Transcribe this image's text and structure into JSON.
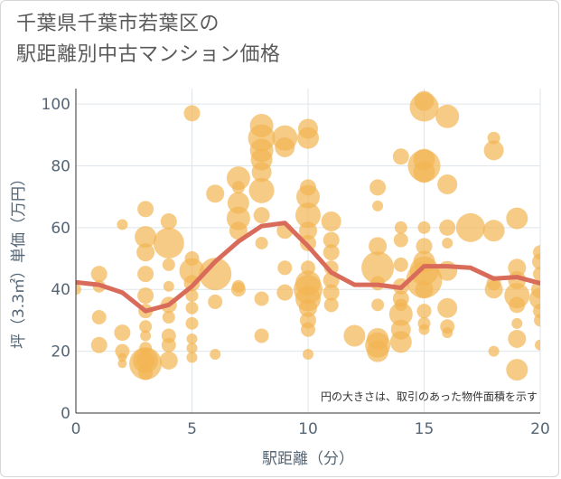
{
  "title_lines": [
    "千葉県千葉市若葉区の",
    "駅距離別中古マンション価格"
  ],
  "chart_data": {
    "type": "scatter",
    "xlabel": "駅距離（分）",
    "ylabel": "坪（3.3㎡）単価（万円）",
    "xlim": [
      0,
      20
    ],
    "ylim": [
      0,
      105
    ],
    "x_ticks": [
      0,
      5,
      10,
      15,
      20
    ],
    "y_ticks": [
      0,
      20,
      40,
      60,
      80,
      100
    ],
    "grid": true,
    "note": "円の大きさは、取引のあった物件面積を示す",
    "bubble_color": "#f2b552",
    "line_color": "#d96b5a",
    "trend_line": [
      [
        0,
        42.3
      ],
      [
        1,
        41.5
      ],
      [
        2,
        39
      ],
      [
        3,
        33
      ],
      [
        4,
        35
      ],
      [
        5,
        41
      ],
      [
        6,
        49
      ],
      [
        7,
        55.5
      ],
      [
        8,
        60.5
      ],
      [
        9,
        61.5
      ],
      [
        10,
        54
      ],
      [
        11,
        45.5
      ],
      [
        12,
        41.5
      ],
      [
        13,
        41.5
      ],
      [
        14,
        40.5
      ],
      [
        15,
        47.5
      ],
      [
        16,
        47.5
      ],
      [
        17,
        47
      ],
      [
        18,
        43.5
      ],
      [
        19,
        44
      ],
      [
        20,
        42
      ]
    ],
    "points": [
      [
        0,
        40,
        6
      ],
      [
        1,
        45,
        9
      ],
      [
        1,
        41,
        7
      ],
      [
        1,
        31,
        8
      ],
      [
        1,
        22,
        9
      ],
      [
        2,
        26,
        9
      ],
      [
        2,
        20,
        8
      ],
      [
        2,
        61,
        6
      ],
      [
        2,
        18,
        5
      ],
      [
        2,
        16,
        5
      ],
      [
        3,
        66,
        9
      ],
      [
        3,
        57,
        12
      ],
      [
        3,
        52,
        10
      ],
      [
        3,
        45,
        9
      ],
      [
        3,
        38,
        9
      ],
      [
        3,
        33,
        8
      ],
      [
        3,
        28,
        7
      ],
      [
        3,
        25,
        6
      ],
      [
        3,
        21,
        7
      ],
      [
        3,
        17,
        14
      ],
      [
        3,
        16,
        18
      ],
      [
        3,
        13,
        8
      ],
      [
        3,
        17,
        10
      ],
      [
        4,
        62,
        9
      ],
      [
        4,
        55,
        17
      ],
      [
        4,
        48,
        7
      ],
      [
        4,
        41,
        6
      ],
      [
        4,
        35,
        9
      ],
      [
        4,
        31,
        7
      ],
      [
        4,
        25,
        8
      ],
      [
        4,
        22,
        8
      ],
      [
        4,
        17,
        10
      ],
      [
        5,
        97,
        9
      ],
      [
        5,
        50,
        8
      ],
      [
        5,
        46,
        14
      ],
      [
        5,
        42,
        9
      ],
      [
        5,
        38,
        7
      ],
      [
        5,
        34,
        7
      ],
      [
        5,
        29,
        7
      ],
      [
        5,
        24,
        6
      ],
      [
        5,
        21,
        6
      ],
      [
        5,
        18,
        6
      ],
      [
        6,
        71,
        10
      ],
      [
        6,
        45,
        18
      ],
      [
        6,
        36,
        8
      ],
      [
        6,
        19,
        6
      ],
      [
        7,
        76,
        13
      ],
      [
        7,
        73,
        7
      ],
      [
        7,
        68,
        12
      ],
      [
        7,
        63,
        13
      ],
      [
        7,
        59,
        10
      ],
      [
        7,
        41,
        7
      ],
      [
        7,
        40,
        8
      ],
      [
        8,
        93,
        13
      ],
      [
        8,
        89,
        15
      ],
      [
        8,
        85,
        13
      ],
      [
        8,
        82,
        12
      ],
      [
        8,
        78,
        11
      ],
      [
        8,
        72,
        14
      ],
      [
        8,
        64,
        9
      ],
      [
        8,
        55,
        7
      ],
      [
        8,
        37,
        8
      ],
      [
        8,
        25,
        8
      ],
      [
        9,
        89,
        14
      ],
      [
        9,
        86,
        11
      ],
      [
        9,
        59,
        9
      ],
      [
        9,
        47,
        8
      ],
      [
        9,
        39,
        9
      ],
      [
        10,
        92,
        11
      ],
      [
        10,
        89,
        12
      ],
      [
        10,
        73,
        9
      ],
      [
        10,
        70,
        13
      ],
      [
        10,
        64,
        14
      ],
      [
        10,
        59,
        10
      ],
      [
        10,
        55,
        9
      ],
      [
        10,
        47,
        8
      ],
      [
        10,
        42,
        14
      ],
      [
        10,
        40,
        16
      ],
      [
        10,
        37,
        14
      ],
      [
        10,
        34,
        10
      ],
      [
        10,
        30,
        9
      ],
      [
        10,
        27,
        8
      ],
      [
        10,
        19,
        6
      ],
      [
        11,
        62,
        11
      ],
      [
        11,
        56,
        9
      ],
      [
        11,
        52,
        9
      ],
      [
        11,
        47,
        8
      ],
      [
        11,
        43,
        9
      ],
      [
        11,
        39,
        9
      ],
      [
        11,
        35,
        8
      ],
      [
        12,
        25,
        12
      ],
      [
        13,
        73,
        9
      ],
      [
        13,
        67,
        6
      ],
      [
        13,
        54,
        10
      ],
      [
        13,
        47,
        18
      ],
      [
        13,
        42,
        8
      ],
      [
        13,
        35,
        7
      ],
      [
        13,
        24,
        12
      ],
      [
        13,
        22,
        14
      ],
      [
        13,
        20,
        12
      ],
      [
        14,
        83,
        9
      ],
      [
        14,
        60,
        7
      ],
      [
        14,
        56,
        8
      ],
      [
        14,
        48,
        8
      ],
      [
        14,
        41,
        9
      ],
      [
        14,
        37,
        9
      ],
      [
        14,
        32,
        13
      ],
      [
        14,
        27,
        11
      ],
      [
        14,
        23,
        12
      ],
      [
        14,
        35,
        7
      ],
      [
        15,
        101,
        11
      ],
      [
        15,
        99,
        16
      ],
      [
        15,
        82,
        12
      ],
      [
        15,
        80,
        18
      ],
      [
        15,
        78,
        12
      ],
      [
        15,
        60,
        7
      ],
      [
        15,
        54,
        9
      ],
      [
        15,
        49,
        12
      ],
      [
        15,
        46,
        16
      ],
      [
        15,
        43,
        20
      ],
      [
        15,
        40,
        10
      ],
      [
        15,
        33,
        8
      ],
      [
        15,
        29,
        7
      ],
      [
        15,
        27,
        6
      ],
      [
        16,
        96,
        13
      ],
      [
        16,
        74,
        11
      ],
      [
        16,
        60,
        9
      ],
      [
        16,
        55,
        6
      ],
      [
        16,
        46,
        11
      ],
      [
        16,
        34,
        11
      ],
      [
        16,
        28,
        8
      ],
      [
        16,
        26,
        6
      ],
      [
        17,
        60,
        16
      ],
      [
        18,
        89,
        7
      ],
      [
        18,
        85,
        11
      ],
      [
        18,
        59,
        12
      ],
      [
        18,
        42,
        8
      ],
      [
        18,
        40,
        10
      ],
      [
        18,
        20,
        6
      ],
      [
        19,
        63,
        12
      ],
      [
        19,
        47,
        10
      ],
      [
        19,
        43,
        10
      ],
      [
        19,
        38,
        14
      ],
      [
        19,
        35,
        9
      ],
      [
        19,
        29,
        6
      ],
      [
        19,
        24,
        10
      ],
      [
        19,
        14,
        12
      ],
      [
        20,
        52,
        8
      ],
      [
        20,
        49,
        9
      ],
      [
        20,
        45,
        8
      ],
      [
        20,
        40,
        10
      ],
      [
        20,
        37,
        12
      ],
      [
        20,
        33,
        8
      ],
      [
        20,
        30,
        7
      ],
      [
        20,
        22,
        6
      ]
    ]
  }
}
